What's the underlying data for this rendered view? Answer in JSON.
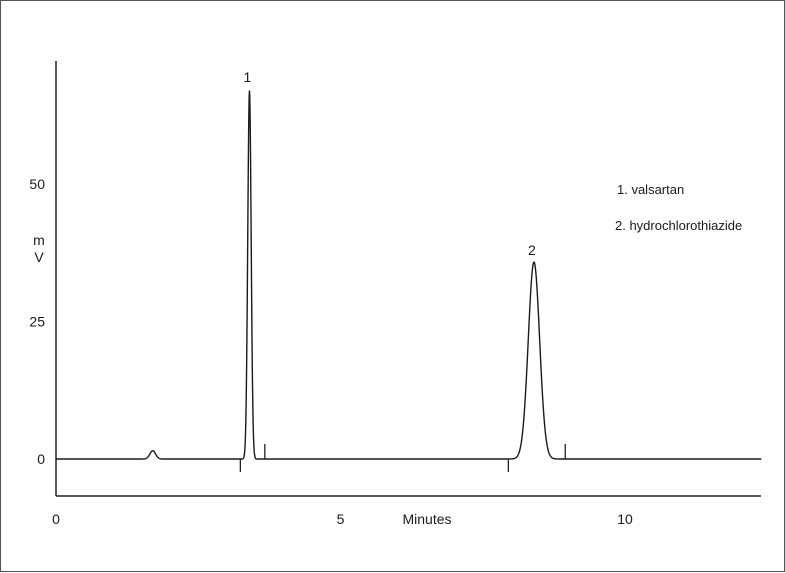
{
  "chart_data": {
    "type": "line",
    "title": "",
    "xlabel": "Minutes",
    "ylabel": [
      "m",
      "V"
    ],
    "xlim": [
      0,
      12.5
    ],
    "ylim": [
      -6.5,
      72
    ],
    "x_ticks": [
      0,
      5,
      10
    ],
    "x_tick_labels": [
      "0",
      "5",
      "10"
    ],
    "y_ticks": [
      0,
      25,
      50
    ],
    "y_tick_labels": [
      "0",
      "25",
      "50"
    ],
    "grid": false,
    "legend_position": "top-right",
    "series": [
      {
        "peaks": [
          {
            "label": "1",
            "retention_time_min": 3.4,
            "height_mv": 67.0,
            "width_sigma_min": 0.03
          },
          {
            "label": "2",
            "retention_time_min": 8.4,
            "height_mv": 35.8,
            "width_sigma_min": 0.1
          }
        ],
        "minor_peaks": [
          {
            "retention_time_min": 1.7,
            "height_mv": 1.5,
            "width_sigma_min": 0.05
          }
        ],
        "baseline_mv": 0
      }
    ],
    "integration_markers": [
      {
        "x": 3.24,
        "direction": "down"
      },
      {
        "x": 3.67,
        "direction": "up"
      },
      {
        "x": 7.95,
        "direction": "down"
      },
      {
        "x": 8.95,
        "direction": "up"
      }
    ],
    "annotations": [
      {
        "text": "1",
        "x": 3.4,
        "y": 69.5
      },
      {
        "text": "2",
        "x": 8.4,
        "y": 38.0
      }
    ],
    "legend": {
      "items": [
        "1. valsartan",
        "2. hydrochlorothiazide"
      ]
    }
  }
}
